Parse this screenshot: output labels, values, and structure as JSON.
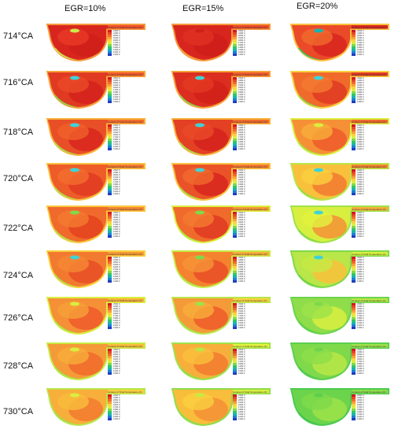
{
  "columns": [
    "EGR=10%",
    "EGR=15%",
    "EGR=20%"
  ],
  "rows": [
    "714°CA",
    "716°CA",
    "718°CA",
    "720°CA",
    "722°CA",
    "724°CA",
    "726°CA",
    "728°CA",
    "730°CA"
  ],
  "legend": {
    "title": "Contour of Total Temperature (K)",
    "ticks": [
      "2300.0",
      "2180.0",
      "2060.0",
      "1940.0",
      "1820.0",
      "1700.0",
      "1580.0",
      "1460.0",
      "1340.0",
      "1220.0",
      "1100.0"
    ],
    "colors": [
      "#d7191c",
      "#e8462a",
      "#f46d27",
      "#f9a03c",
      "#fdd33b",
      "#d9ef3f",
      "#7fd94a",
      "#2fc66a",
      "#1ab3b0",
      "#1f7fd6",
      "#1f3fbf"
    ]
  },
  "panels": [
    [
      {
        "body": "#d8261f",
        "inner": "#ea3a25",
        "channel": "#f0502a",
        "edge": "#f59a3c",
        "spot": "#c9ea4a",
        "hot": "#d0201a",
        "cool": "#c9ea4a"
      },
      {
        "body": "#e03a22",
        "inner": "#ea4a28",
        "channel": "#f15a2a",
        "edge": "#f7a23a",
        "spot": "#3fd2d8",
        "hot": "#d4221c",
        "cool": "#7fd94a"
      },
      {
        "body": "#e94f27",
        "inner": "#f0602a",
        "channel": "#f36a2d",
        "edge": "#f8b23a",
        "spot": "#3fd2d8",
        "hot": "#d8261f",
        "cool": "#9ee24a"
      },
      {
        "body": "#ee5c2a",
        "inner": "#f26e2d",
        "channel": "#f47a30",
        "edge": "#f8c03c",
        "spot": "#3fd2d8",
        "hot": "#e03a22",
        "cool": "#9ee24a"
      },
      {
        "body": "#f06a2c",
        "inner": "#f47a30",
        "channel": "#f58833",
        "edge": "#f9c83e",
        "spot": "#7fd94a",
        "hot": "#e4421f",
        "cool": "#a9e64a"
      },
      {
        "body": "#f27a30",
        "inner": "#f58833",
        "channel": "#f69a36",
        "edge": "#fad03e",
        "spot": "#3fd2d8",
        "hot": "#e94f27",
        "cool": "#a9e64a"
      },
      {
        "body": "#f59036",
        "inner": "#f6a03a",
        "channel": "#f8ae3b",
        "edge": "#d9ef3f",
        "spot": "#d9ef3f",
        "hot": "#ee5c2a",
        "cool": "#a9e64a"
      },
      {
        "body": "#f59a38",
        "inner": "#f8ae3b",
        "channel": "#f9bd3c",
        "edge": "#c7ea44",
        "spot": "#d9ef3f",
        "hot": "#f06a2c",
        "cool": "#9ee24a"
      },
      {
        "body": "#f8ae3b",
        "inner": "#f9bd3c",
        "channel": "#fad03e",
        "edge": "#b9e648",
        "spot": "#d9ef3f",
        "hot": "#f27a30",
        "cool": "#9ee24a"
      }
    ],
    [
      {
        "body": "#d8261f",
        "inner": "#e03022",
        "channel": "#ea4a28",
        "edge": "#f59a3c",
        "spot": "#d0201a",
        "hot": "#cf1f1a",
        "cool": "#f7a23a"
      },
      {
        "body": "#dc2e20",
        "inner": "#e43a22",
        "channel": "#ee5a2a",
        "edge": "#f7a23a",
        "spot": "#3fd2d8",
        "hot": "#d0201a",
        "cool": "#7fd94a"
      },
      {
        "body": "#e34024",
        "inner": "#ea4a28",
        "channel": "#f06a2c",
        "edge": "#f8b23a",
        "spot": "#3fd2d8",
        "hot": "#d4221c",
        "cool": "#9ee24a"
      },
      {
        "body": "#ea5228",
        "inner": "#f06a2c",
        "channel": "#f47a30",
        "edge": "#f9c03c",
        "spot": "#3fd2d8",
        "hot": "#d8261f",
        "cool": "#9ee24a"
      },
      {
        "body": "#f06a2c",
        "inner": "#f47a30",
        "channel": "#f69a36",
        "edge": "#d9ef3f",
        "spot": "#7fd94a",
        "hot": "#e03a22",
        "cool": "#a9e64a"
      },
      {
        "body": "#f4822f",
        "inner": "#f69436",
        "channel": "#f8ae3b",
        "edge": "#c7ea44",
        "spot": "#7fd94a",
        "hot": "#e94f27",
        "cool": "#a9e64a"
      },
      {
        "body": "#f59a38",
        "inner": "#f8ae3b",
        "channel": "#fad03e",
        "edge": "#b9e648",
        "spot": "#9ee24a",
        "hot": "#ee5c2a",
        "cool": "#9ee24a"
      },
      {
        "body": "#f8ae3b",
        "inner": "#f9c03c",
        "channel": "#e2f23f",
        "edge": "#9ee24a",
        "spot": "#b9e648",
        "hot": "#f27a30",
        "cool": "#8fdd4a"
      },
      {
        "body": "#f9bd3c",
        "inner": "#fad03e",
        "channel": "#d9ef3f",
        "edge": "#8fdd4a",
        "spot": "#c7ea44",
        "hot": "#f59036",
        "cool": "#8fdd4a"
      }
    ],
    [
      {
        "body": "#ea4a28",
        "inner": "#f06a2c",
        "channel": "#d8261f",
        "edge": "#f9c03c",
        "spot": "#1ab3b0",
        "hot": "#d8261f",
        "cool": "#2fc66a"
      },
      {
        "body": "#f06a2c",
        "inner": "#f47a30",
        "channel": "#e03a22",
        "edge": "#fad03e",
        "spot": "#3fd2d8",
        "hot": "#e03a22",
        "cool": "#7fd94a"
      },
      {
        "body": "#f59036",
        "inner": "#f8ae3b",
        "channel": "#f06a2c",
        "edge": "#d9ef3f",
        "spot": "#d9ef3f",
        "hot": "#ee5c2a",
        "cool": "#9ee24a"
      },
      {
        "body": "#f9c03c",
        "inner": "#fad03e",
        "channel": "#f4822f",
        "edge": "#b9e648",
        "spot": "#3fd2d8",
        "hot": "#f27a30",
        "cool": "#8fdd4a"
      },
      {
        "body": "#d9ef3f",
        "inner": "#e2f23f",
        "channel": "#f8ae3b",
        "edge": "#9ee24a",
        "spot": "#3fd2d8",
        "hot": "#f59036",
        "cool": "#7fd94a"
      },
      {
        "body": "#b9e648",
        "inner": "#c7ea44",
        "channel": "#d9ef3f",
        "edge": "#7fd94a",
        "spot": "#3fd2d8",
        "hot": "#f9c03c",
        "cool": "#6cd44c"
      },
      {
        "body": "#8fdd4a",
        "inner": "#9ee24a",
        "channel": "#b9e648",
        "edge": "#6cd44c",
        "spot": "#7fd94a",
        "hot": "#d9ef3f",
        "cool": "#5ccf4e"
      },
      {
        "body": "#7fd94a",
        "inner": "#8fdd4a",
        "channel": "#9ee24a",
        "edge": "#5ccf4e",
        "spot": "#6cd44c",
        "hot": "#b9e648",
        "cool": "#4cca50"
      },
      {
        "body": "#6cd44c",
        "inner": "#7fd94a",
        "channel": "#8fdd4a",
        "edge": "#4cca50",
        "spot": "#5ccf4e",
        "hot": "#9ee24a",
        "cool": "#3fc652"
      }
    ]
  ]
}
